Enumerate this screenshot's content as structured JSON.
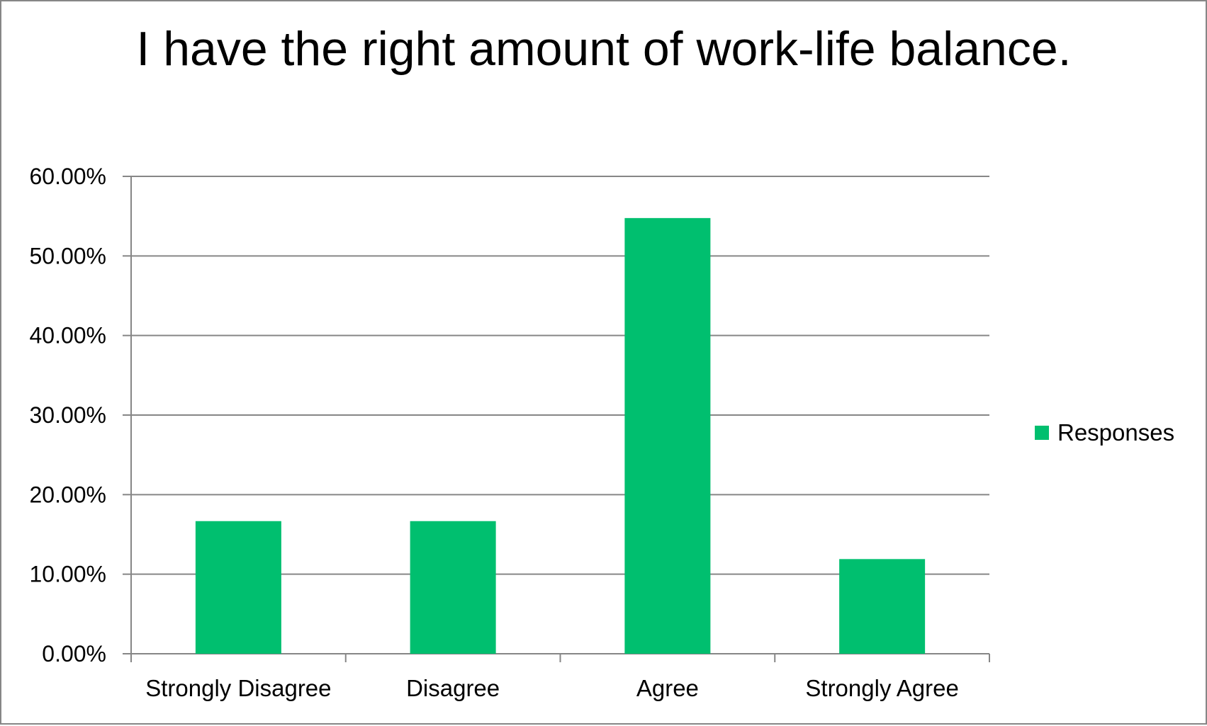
{
  "chart_data": {
    "type": "bar",
    "title": "I have the right amount of work-life balance.",
    "categories": [
      "Strongly Disagree",
      "Disagree",
      "Agree",
      "Strongly Agree"
    ],
    "series": [
      {
        "name": "Responses",
        "values": [
          16.67,
          16.67,
          54.76,
          11.9
        ],
        "color": "#00BF6F"
      }
    ],
    "xlabel": "",
    "ylabel": "",
    "ylim": [
      0,
      60
    ],
    "yticks": [
      "0.00%",
      "10.00%",
      "20.00%",
      "30.00%",
      "40.00%",
      "50.00%",
      "60.00%"
    ],
    "grid": true,
    "legend_position": "right",
    "gridline_color": "#868686"
  }
}
